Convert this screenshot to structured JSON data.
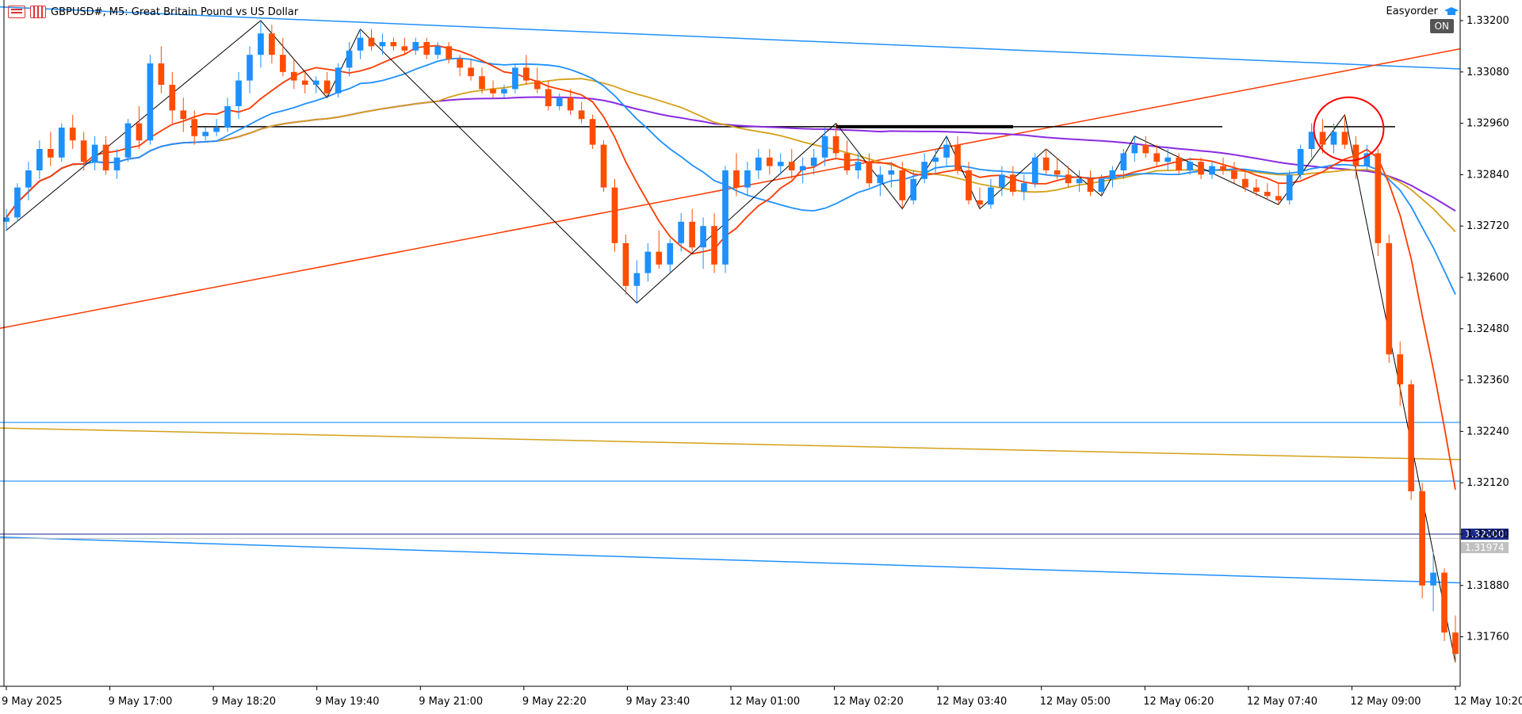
{
  "header": {
    "symbol_title": "GBPUSD#, M5:  Great Britain Pound vs US Dollar",
    "ea_name": "Easyorder",
    "ea_status": "ON"
  },
  "chart_data": {
    "type": "candlestick",
    "symbol": "GBPUSD#",
    "timeframe": "M5",
    "y_axis": {
      "ylim": [
        1.3167,
        1.3331
      ],
      "ticks": [
        "1.33200",
        "1.33080",
        "1.32960",
        "1.32840",
        "1.32720",
        "1.32600",
        "1.32480",
        "1.32360",
        "1.32240",
        "1.32120",
        "1.32000",
        "1.31880",
        "1.31760"
      ]
    },
    "x_axis": {
      "ticks": [
        "9 May 2025",
        "9 May 17:00",
        "9 May 18:20",
        "9 May 19:40",
        "9 May 21:00",
        "9 May 22:20",
        "9 May 23:40",
        "12 May 01:00",
        "12 May 02:20",
        "12 May 03:40",
        "12 May 05:00",
        "12 May 06:20",
        "12 May 07:40",
        "12 May 09:00",
        "12 May 10:20"
      ]
    },
    "price_labels": {
      "bid": "1.32000",
      "current": "1.31974"
    },
    "colors": {
      "bull": "#1e90ff",
      "bear": "#ff4d00",
      "ma_fast": "#ff3a00",
      "ma_mid": "#1e90ff",
      "ma_slow": "#d4a017",
      "ma_long": "#8a2be2",
      "zigzag": "#000000",
      "trend_up": "#ff3a00",
      "channel": "#1e90ff",
      "level": "#1e90ff",
      "level_orange": "#d4a017",
      "resistance": "#000000",
      "circle": "#ff0000",
      "bid_label_bg": "#1b2a8a",
      "current_label_bg": "#c0c0c0"
    },
    "candles": [
      [
        1.3273,
        1.3276,
        1.3271,
        1.3274
      ],
      [
        1.3274,
        1.3282,
        1.3273,
        1.3281
      ],
      [
        1.3281,
        1.3287,
        1.3278,
        1.3285
      ],
      [
        1.3285,
        1.3292,
        1.3283,
        1.329
      ],
      [
        1.329,
        1.3294,
        1.3286,
        1.3288
      ],
      [
        1.3288,
        1.3296,
        1.3287,
        1.3295
      ],
      [
        1.3295,
        1.3298,
        1.329,
        1.3292
      ],
      [
        1.3292,
        1.3294,
        1.3285,
        1.3287
      ],
      [
        1.3287,
        1.3293,
        1.3285,
        1.3291
      ],
      [
        1.3291,
        1.3293,
        1.3284,
        1.3285
      ],
      [
        1.3285,
        1.329,
        1.3283,
        1.3288
      ],
      [
        1.3288,
        1.3297,
        1.3287,
        1.3296
      ],
      [
        1.3296,
        1.33,
        1.329,
        1.3292
      ],
      [
        1.3292,
        1.3312,
        1.3291,
        1.331
      ],
      [
        1.331,
        1.3314,
        1.3303,
        1.3305
      ],
      [
        1.3305,
        1.3308,
        1.3296,
        1.3299
      ],
      [
        1.3299,
        1.3302,
        1.3294,
        1.3297
      ],
      [
        1.3297,
        1.3299,
        1.3291,
        1.3293
      ],
      [
        1.3293,
        1.3295,
        1.3292,
        1.3294
      ],
      [
        1.3294,
        1.3297,
        1.3293,
        1.3295
      ],
      [
        1.3295,
        1.3302,
        1.3294,
        1.33
      ],
      [
        1.33,
        1.3308,
        1.3297,
        1.3306
      ],
      [
        1.3306,
        1.3314,
        1.3303,
        1.3312
      ],
      [
        1.3312,
        1.332,
        1.3309,
        1.3317
      ],
      [
        1.3317,
        1.3319,
        1.331,
        1.3312
      ],
      [
        1.3312,
        1.3316,
        1.3307,
        1.3308
      ],
      [
        1.3308,
        1.3311,
        1.3304,
        1.3306
      ],
      [
        1.3306,
        1.3308,
        1.3303,
        1.3305
      ],
      [
        1.3305,
        1.3307,
        1.3303,
        1.3306
      ],
      [
        1.3306,
        1.3308,
        1.3302,
        1.3303
      ],
      [
        1.3303,
        1.331,
        1.3302,
        1.3309
      ],
      [
        1.3309,
        1.3315,
        1.3307,
        1.3313
      ],
      [
        1.3313,
        1.3318,
        1.3311,
        1.3316
      ],
      [
        1.3316,
        1.3318,
        1.3313,
        1.3314
      ],
      [
        1.3314,
        1.3317,
        1.3312,
        1.3315
      ],
      [
        1.3315,
        1.3316,
        1.3313,
        1.3314
      ],
      [
        1.3314,
        1.3316,
        1.3312,
        1.3313
      ],
      [
        1.3313,
        1.3316,
        1.3312,
        1.3315
      ],
      [
        1.3315,
        1.3316,
        1.3311,
        1.3312
      ],
      [
        1.3312,
        1.3315,
        1.3311,
        1.3314
      ],
      [
        1.3314,
        1.3315,
        1.331,
        1.3311
      ],
      [
        1.3311,
        1.3312,
        1.3307,
        1.3309
      ],
      [
        1.3309,
        1.3311,
        1.3306,
        1.3307
      ],
      [
        1.3307,
        1.3309,
        1.3303,
        1.3304
      ],
      [
        1.3304,
        1.3306,
        1.3302,
        1.3303
      ],
      [
        1.3303,
        1.3305,
        1.3302,
        1.3304
      ],
      [
        1.3304,
        1.331,
        1.3303,
        1.3309
      ],
      [
        1.3309,
        1.3312,
        1.3305,
        1.3306
      ],
      [
        1.3306,
        1.3309,
        1.3303,
        1.3304
      ],
      [
        1.3304,
        1.3306,
        1.3299,
        1.33
      ],
      [
        1.33,
        1.3303,
        1.3299,
        1.3302
      ],
      [
        1.3302,
        1.3304,
        1.3298,
        1.3299
      ],
      [
        1.3299,
        1.3301,
        1.3296,
        1.3297
      ],
      [
        1.3297,
        1.3298,
        1.329,
        1.3291
      ],
      [
        1.3291,
        1.3292,
        1.328,
        1.3281
      ],
      [
        1.3281,
        1.3283,
        1.3266,
        1.3268
      ],
      [
        1.3268,
        1.327,
        1.3256,
        1.3258
      ],
      [
        1.3258,
        1.3264,
        1.3254,
        1.3261
      ],
      [
        1.3261,
        1.3268,
        1.3259,
        1.3266
      ],
      [
        1.3266,
        1.3271,
        1.3262,
        1.3263
      ],
      [
        1.3263,
        1.3269,
        1.3261,
        1.3268
      ],
      [
        1.3268,
        1.3275,
        1.3266,
        1.3273
      ],
      [
        1.3273,
        1.3276,
        1.3266,
        1.3267
      ],
      [
        1.3267,
        1.3274,
        1.3262,
        1.3272
      ],
      [
        1.3272,
        1.3275,
        1.3261,
        1.3263
      ],
      [
        1.3263,
        1.3286,
        1.3261,
        1.3285
      ],
      [
        1.3285,
        1.3289,
        1.3279,
        1.3281
      ],
      [
        1.3281,
        1.3287,
        1.3279,
        1.3285
      ],
      [
        1.3285,
        1.329,
        1.3283,
        1.3288
      ],
      [
        1.3288,
        1.329,
        1.3284,
        1.3286
      ],
      [
        1.3286,
        1.3289,
        1.3284,
        1.3287
      ],
      [
        1.3287,
        1.329,
        1.3283,
        1.3285
      ],
      [
        1.3285,
        1.3288,
        1.3282,
        1.3286
      ],
      [
        1.3286,
        1.329,
        1.3284,
        1.3288
      ],
      [
        1.3288,
        1.3295,
        1.3286,
        1.3293
      ],
      [
        1.3293,
        1.3296,
        1.3288,
        1.3289
      ],
      [
        1.3289,
        1.3292,
        1.3284,
        1.3285
      ],
      [
        1.3285,
        1.3289,
        1.3283,
        1.3287
      ],
      [
        1.3287,
        1.3289,
        1.3281,
        1.3282
      ],
      [
        1.3282,
        1.3286,
        1.3279,
        1.3284
      ],
      [
        1.3284,
        1.3287,
        1.3281,
        1.3285
      ],
      [
        1.3285,
        1.3287,
        1.3276,
        1.3278
      ],
      [
        1.3278,
        1.3285,
        1.3277,
        1.3283
      ],
      [
        1.3283,
        1.3289,
        1.3282,
        1.3287
      ],
      [
        1.3287,
        1.329,
        1.3284,
        1.3288
      ],
      [
        1.3288,
        1.3293,
        1.3286,
        1.3291
      ],
      [
        1.3291,
        1.3293,
        1.3284,
        1.3285
      ],
      [
        1.3285,
        1.3287,
        1.3277,
        1.3278
      ],
      [
        1.3278,
        1.3281,
        1.3276,
        1.3277
      ],
      [
        1.3277,
        1.3283,
        1.3276,
        1.3281
      ],
      [
        1.3281,
        1.3286,
        1.3279,
        1.3284
      ],
      [
        1.3284,
        1.3286,
        1.3279,
        1.328
      ],
      [
        1.328,
        1.3284,
        1.3278,
        1.3282
      ],
      [
        1.3282,
        1.3289,
        1.3281,
        1.3288
      ],
      [
        1.3288,
        1.329,
        1.3284,
        1.3285
      ],
      [
        1.3285,
        1.3288,
        1.3283,
        1.3284
      ],
      [
        1.3284,
        1.3286,
        1.3281,
        1.3282
      ],
      [
        1.3282,
        1.3285,
        1.328,
        1.3283
      ],
      [
        1.3283,
        1.3285,
        1.3279,
        1.328
      ],
      [
        1.328,
        1.3284,
        1.3279,
        1.3283
      ],
      [
        1.3283,
        1.3286,
        1.3281,
        1.3285
      ],
      [
        1.3285,
        1.329,
        1.3283,
        1.3289
      ],
      [
        1.3289,
        1.3293,
        1.3287,
        1.3291
      ],
      [
        1.3291,
        1.3293,
        1.3288,
        1.3289
      ],
      [
        1.3289,
        1.3291,
        1.3286,
        1.3287
      ],
      [
        1.3287,
        1.329,
        1.3285,
        1.3288
      ],
      [
        1.3288,
        1.3289,
        1.3284,
        1.3285
      ],
      [
        1.3285,
        1.3288,
        1.3284,
        1.3287
      ],
      [
        1.3287,
        1.3288,
        1.3283,
        1.3284
      ],
      [
        1.3284,
        1.3287,
        1.3283,
        1.3286
      ],
      [
        1.3286,
        1.3288,
        1.3284,
        1.3285
      ],
      [
        1.3285,
        1.3287,
        1.3282,
        1.3283
      ],
      [
        1.3283,
        1.3285,
        1.328,
        1.3281
      ],
      [
        1.3281,
        1.3283,
        1.3279,
        1.328
      ],
      [
        1.328,
        1.3282,
        1.3278,
        1.3279
      ],
      [
        1.3279,
        1.3282,
        1.3277,
        1.3278
      ],
      [
        1.3278,
        1.3285,
        1.3277,
        1.3284
      ],
      [
        1.3284,
        1.3291,
        1.3283,
        1.329
      ],
      [
        1.329,
        1.3296,
        1.3288,
        1.3294
      ],
      [
        1.3294,
        1.3297,
        1.3289,
        1.3291
      ],
      [
        1.3291,
        1.3296,
        1.3289,
        1.3294
      ],
      [
        1.3294,
        1.3298,
        1.329,
        1.3291
      ],
      [
        1.3291,
        1.3293,
        1.3283,
        1.3286
      ],
      [
        1.3286,
        1.3291,
        1.3285,
        1.3289
      ],
      [
        1.3289,
        1.329,
        1.3265,
        1.3268
      ],
      [
        1.3268,
        1.327,
        1.324,
        1.3242
      ],
      [
        1.3242,
        1.3245,
        1.323,
        1.3235
      ],
      [
        1.3235,
        1.3236,
        1.3208,
        1.321
      ],
      [
        1.321,
        1.3212,
        1.3185,
        1.3188
      ],
      [
        1.3188,
        1.3196,
        1.3182,
        1.3191
      ],
      [
        1.3191,
        1.3192,
        1.3175,
        1.3177
      ],
      [
        1.3177,
        1.3181,
        1.317,
        1.3172
      ]
    ]
  }
}
